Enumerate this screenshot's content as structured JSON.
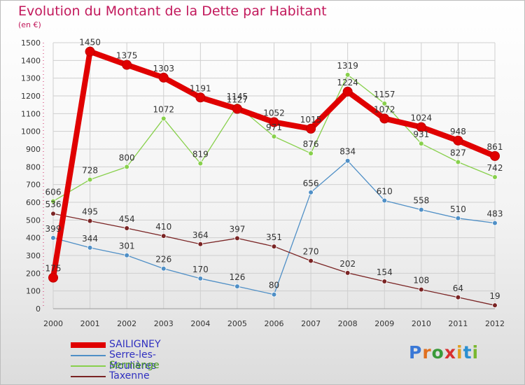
{
  "title": "Evolution du Montant de la Dette par Habitant",
  "unit": "(en €)",
  "logo": {
    "text": "Proxiti",
    "letters": [
      "P",
      "r",
      "o",
      "x",
      "i",
      "t",
      "i"
    ],
    "colors": [
      "#3a78d6",
      "#e07020",
      "#3a9a3a",
      "#d83030",
      "#e0a020",
      "#2b8fd0",
      "#7ab830"
    ]
  },
  "chart_data": {
    "type": "line",
    "title": "Evolution du Montant de la Dette par Habitant",
    "ylabel": "(en €)",
    "x": [
      "2000",
      "2001",
      "2002",
      "2003",
      "2004",
      "2005",
      "2006",
      "2007",
      "2008",
      "2009",
      "2010",
      "2011",
      "2012"
    ],
    "ylim": [
      0,
      1500
    ],
    "yticks": [
      0,
      100,
      200,
      300,
      400,
      500,
      600,
      700,
      800,
      900,
      1000,
      1100,
      1200,
      1300,
      1400,
      1500
    ],
    "grid": true,
    "legend": "bottom-left",
    "series": [
      {
        "name": "SAILIGNEY",
        "color": "#e00000",
        "values": [
          175,
          1450,
          1375,
          1303,
          1191,
          1127,
          1052,
          1015,
          1224,
          1072,
          1024,
          948,
          861
        ]
      },
      {
        "name": "Serre-les-Moulières",
        "color": "#4f8fc6",
        "values": [
          399,
          344,
          301,
          226,
          170,
          126,
          80,
          656,
          834,
          610,
          558,
          510,
          483
        ]
      },
      {
        "name": "Sermange",
        "color": "#88d04c",
        "values": [
          606,
          728,
          800,
          1072,
          819,
          1145,
          971,
          876,
          1319,
          1157,
          931,
          827,
          742
        ]
      },
      {
        "name": "Taxenne",
        "color": "#7a2424",
        "values": [
          536,
          495,
          454,
          410,
          364,
          397,
          351,
          270,
          202,
          154,
          108,
          64,
          19
        ]
      }
    ]
  }
}
